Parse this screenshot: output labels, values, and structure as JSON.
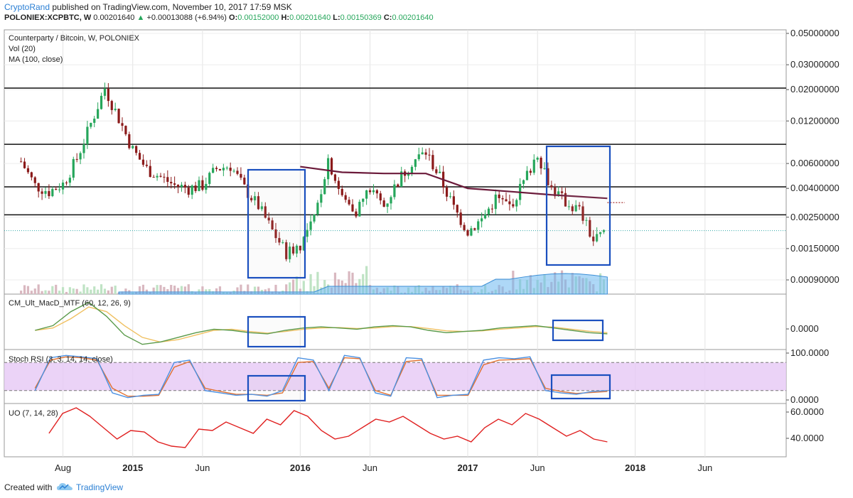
{
  "header": {
    "author": "CryptoRand",
    "published_text": "published on TradingView.com, November 10, 2017 17:59 MSK",
    "symbol": "POLONIEX:XCPBTC, W",
    "last": "0.00201640",
    "up_arrow": "▲",
    "change": "+0.00013088 (+6.94%)",
    "o_label": "O:",
    "o_value": "0.00152000",
    "h_label": "H:",
    "h_value": "0.00201640",
    "l_label": "L:",
    "l_value": "0.00150369",
    "c_label": "C:",
    "c_value": "0.00201640"
  },
  "legend": {
    "title": "Counterparty / Bitcoin, W, POLONIEX",
    "vol": "Vol (20)",
    "ma": "MA (100, close)",
    "macd": "CM_Ult_MacD_MTF (60, 12, 26, 9)",
    "stoch": "Stoch RSI (3, 3, 14, 14, close)",
    "uo": "UO (7, 14, 28)"
  },
  "footer": {
    "created_with": "Created with",
    "brand": "TradingView"
  },
  "colors": {
    "up": "#26a65b",
    "down": "#8b1a1a",
    "ma": "#6b1a3a",
    "box": "#1a4fbf",
    "macd_fast": "#5a9a4a",
    "macd_slow": "#f0c060",
    "stoch_k": "#4a90e2",
    "stoch_d": "#e07030",
    "uo": "#e02020",
    "stoch_band": "#e6c8f5",
    "volume_ma": "#6cb8f0"
  },
  "chart_data": [
    {
      "type": "candlestick",
      "panel": "price",
      "title": "Counterparty / Bitcoin, W, POLONIEX",
      "scale": "log",
      "y_ticks": [
        "0.05000000",
        "0.03000000",
        "0.02000000",
        "0.01200000",
        "0.00600000",
        "0.00400000",
        "0.00250000",
        "0.00150000",
        "0.00090000"
      ],
      "x_ticks": [
        "Aug",
        "2015",
        "Jun",
        "2016",
        "Jun",
        "2017",
        "Jun",
        "2018",
        "Jun"
      ],
      "approx_close_series": [
        {
          "date": "2014-05",
          "close": 0.0062
        },
        {
          "date": "2014-06",
          "close": 0.0042
        },
        {
          "date": "2014-07",
          "close": 0.0038
        },
        {
          "date": "2014-08",
          "close": 0.0043
        },
        {
          "date": "2014-09",
          "close": 0.0065
        },
        {
          "date": "2014-10",
          "close": 0.0115
        },
        {
          "date": "2014-11",
          "close": 0.0205
        },
        {
          "date": "2014-12",
          "close": 0.0125
        },
        {
          "date": "2015-01",
          "close": 0.0075
        },
        {
          "date": "2015-02",
          "close": 0.0055
        },
        {
          "date": "2015-03",
          "close": 0.0048
        },
        {
          "date": "2015-04",
          "close": 0.0042
        },
        {
          "date": "2015-05",
          "close": 0.004
        },
        {
          "date": "2015-06",
          "close": 0.0042
        },
        {
          "date": "2015-07",
          "close": 0.0055
        },
        {
          "date": "2015-08",
          "close": 0.0058
        },
        {
          "date": "2015-09",
          "close": 0.004
        },
        {
          "date": "2015-10",
          "close": 0.003
        },
        {
          "date": "2015-11",
          "close": 0.002
        },
        {
          "date": "2015-12",
          "close": 0.0014
        },
        {
          "date": "2016-01",
          "close": 0.0016
        },
        {
          "date": "2016-02",
          "close": 0.0024
        },
        {
          "date": "2016-03",
          "close": 0.0065
        },
        {
          "date": "2016-04",
          "close": 0.0034
        },
        {
          "date": "2016-05",
          "close": 0.0028
        },
        {
          "date": "2016-06",
          "close": 0.004
        },
        {
          "date": "2016-07",
          "close": 0.003
        },
        {
          "date": "2016-08",
          "close": 0.0045
        },
        {
          "date": "2016-09",
          "close": 0.0062
        },
        {
          "date": "2016-10",
          "close": 0.0072
        },
        {
          "date": "2016-11",
          "close": 0.0048
        },
        {
          "date": "2016-12",
          "close": 0.0029
        },
        {
          "date": "2017-01",
          "close": 0.002
        },
        {
          "date": "2017-02",
          "close": 0.0024
        },
        {
          "date": "2017-03",
          "close": 0.0034
        },
        {
          "date": "2017-04",
          "close": 0.003
        },
        {
          "date": "2017-05",
          "close": 0.0044
        },
        {
          "date": "2017-06",
          "close": 0.0072
        },
        {
          "date": "2017-07",
          "close": 0.004
        },
        {
          "date": "2017-08",
          "close": 0.0032
        },
        {
          "date": "2017-09",
          "close": 0.0028
        },
        {
          "date": "2017-10",
          "close": 0.0017
        },
        {
          "date": "2017-11",
          "close": 0.002
        }
      ],
      "horizontal_levels": [
        0.0205,
        0.0082,
        0.0041,
        0.0026
      ],
      "ma_100": [
        {
          "date": "2016-01",
          "value": 0.0057
        },
        {
          "date": "2016-04",
          "value": 0.0052
        },
        {
          "date": "2016-07",
          "value": 0.0051
        },
        {
          "date": "2016-10",
          "value": 0.0051
        },
        {
          "date": "2017-01",
          "value": 0.004
        },
        {
          "date": "2017-04",
          "value": 0.0038
        },
        {
          "date": "2017-07",
          "value": 0.0036
        },
        {
          "date": "2017-11",
          "value": 0.0034
        }
      ]
    },
    {
      "type": "line",
      "panel": "macd",
      "title": "CM_Ult_MacD_MTF (60, 12, 26, 9)",
      "y_ticks": [
        "0.0000"
      ],
      "series_fast": [
        0,
        2,
        8,
        12,
        6,
        -2,
        -6,
        -5,
        -3,
        -1,
        0.5,
        0,
        -1,
        -1.5,
        0,
        1,
        1.5,
        1,
        0.5,
        1.5,
        2,
        1.5,
        0,
        -1,
        -0.5,
        0,
        1,
        1.5,
        2,
        1,
        0,
        -1,
        -1.5
      ],
      "series_slow": [
        0,
        1,
        5,
        10,
        8,
        2,
        -3,
        -5,
        -4,
        -2,
        0,
        0.5,
        -0.5,
        -1.2,
        -0.5,
        0.5,
        1,
        1.2,
        0.8,
        1,
        1.6,
        1.6,
        0.8,
        -0.2,
        -0.5,
        -0.2,
        0.5,
        1,
        1.6,
        1.4,
        0.5,
        -0.4,
        -1
      ]
    },
    {
      "type": "line",
      "panel": "stoch_rsi",
      "title": "Stoch RSI (3, 3, 14, 14, close)",
      "y_ticks": [
        "100.0000",
        "0.0000"
      ],
      "upper_band": 80,
      "lower_band": 20,
      "k": [
        20,
        90,
        95,
        92,
        88,
        15,
        5,
        10,
        12,
        80,
        85,
        20,
        15,
        10,
        12,
        8,
        20,
        90,
        85,
        20,
        95,
        90,
        15,
        8,
        90,
        88,
        5,
        10,
        12,
        85,
        90,
        88,
        92,
        20,
        15,
        12,
        18,
        20
      ],
      "d": [
        25,
        85,
        92,
        90,
        85,
        25,
        8,
        8,
        10,
        70,
        82,
        25,
        18,
        12,
        12,
        10,
        15,
        80,
        82,
        25,
        90,
        88,
        20,
        10,
        82,
        85,
        10,
        10,
        10,
        75,
        85,
        86,
        88,
        25,
        18,
        14,
        16,
        18
      ]
    },
    {
      "type": "line",
      "panel": "ultimate_oscillator",
      "title": "UO (7, 14, 28)",
      "y_ticks": [
        "60.0000",
        "40.0000"
      ],
      "values": [
        44,
        58,
        62,
        56,
        48,
        40,
        46,
        45,
        38,
        35,
        34,
        47,
        46,
        52,
        48,
        44,
        54,
        50,
        60,
        56,
        46,
        40,
        42,
        48,
        54,
        52,
        56,
        50,
        44,
        40,
        42,
        38,
        48,
        54,
        50,
        58,
        54,
        48,
        42,
        46,
        40,
        38
      ]
    }
  ]
}
